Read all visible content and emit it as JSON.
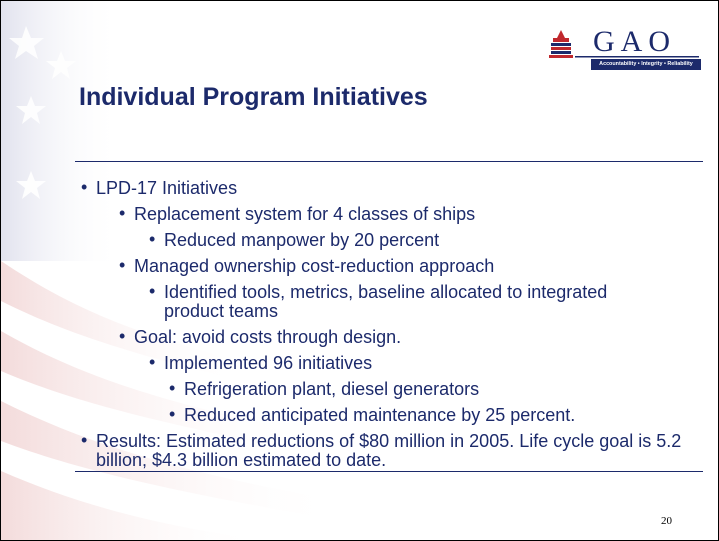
{
  "header": {
    "logo": "GAO",
    "tagline": "Accountability • Integrity • Reliability"
  },
  "title": "Individual Program Initiatives",
  "bullets": [
    {
      "level": 1,
      "text": "LPD-17 Initiatives"
    },
    {
      "level": 2,
      "text": "Replacement system for 4 classes of ships"
    },
    {
      "level": 3,
      "text": "Reduced manpower by 20 percent"
    },
    {
      "level": 2,
      "text": "Managed ownership cost-reduction approach"
    },
    {
      "level": 3,
      "text": "Identified tools, metrics, baseline allocated to integrated product teams"
    },
    {
      "level": 2,
      "text": "Goal:  avoid costs through design."
    },
    {
      "level": 3,
      "text": "Implemented 96 initiatives"
    },
    {
      "level": 4,
      "text": "Refrigeration plant, diesel generators"
    },
    {
      "level": 4,
      "text": "Reduced anticipated maintenance by 25 percent."
    },
    {
      "level": 1,
      "text": "Results:  Estimated reductions of $80 million in 2005.  Life cycle goal is 5.2 billion; $4.3 billion estimated to date."
    }
  ],
  "page_number": "20"
}
